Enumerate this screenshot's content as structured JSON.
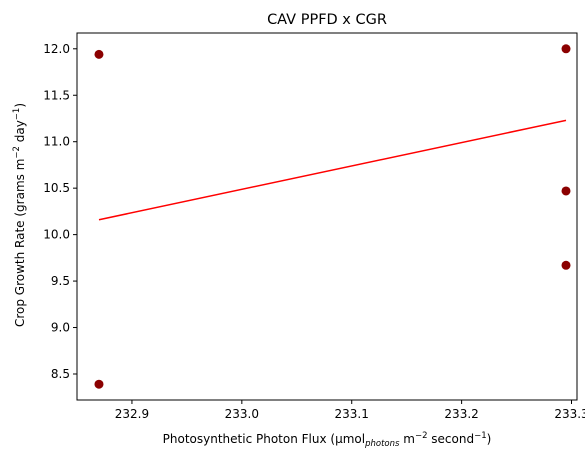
{
  "chart_data": {
    "type": "scatter",
    "title": "CAV PPFD x CGR",
    "xlabel": {
      "pre": "Photosynthetic Photon Flux (µmol",
      "sub": "photons",
      "mid": " m",
      "sup1": "−2",
      "post": " second",
      "sup2": "−1",
      "end": ")"
    },
    "ylabel": {
      "pre": "Crop Growth Rate (grams m",
      "sup1": "−2",
      "mid": " day",
      "sup2": "−1",
      "end": ")"
    },
    "xlim": [
      232.85,
      233.305
    ],
    "ylim": [
      8.22,
      12.17
    ],
    "xticks": [
      232.9,
      233.0,
      233.1,
      233.2,
      233.3
    ],
    "xtick_labels": [
      "232.9",
      "233.0",
      "233.1",
      "233.2",
      "233.3"
    ],
    "yticks": [
      8.5,
      9.0,
      9.5,
      10.0,
      10.5,
      11.0,
      11.5,
      12.0
    ],
    "ytick_labels": [
      "8.5",
      "9.0",
      "9.5",
      "10.0",
      "10.5",
      "11.0",
      "11.5",
      "12.0"
    ],
    "points": [
      {
        "x": 232.87,
        "y": 11.94
      },
      {
        "x": 232.87,
        "y": 8.39
      },
      {
        "x": 233.295,
        "y": 12.0
      },
      {
        "x": 233.295,
        "y": 10.47
      },
      {
        "x": 233.295,
        "y": 9.67
      }
    ],
    "trend_line": {
      "x": [
        232.87,
        233.295
      ],
      "y": [
        10.16,
        11.23
      ]
    },
    "colors": {
      "points": "#8b0000",
      "trend_line": "#ff0000"
    }
  }
}
